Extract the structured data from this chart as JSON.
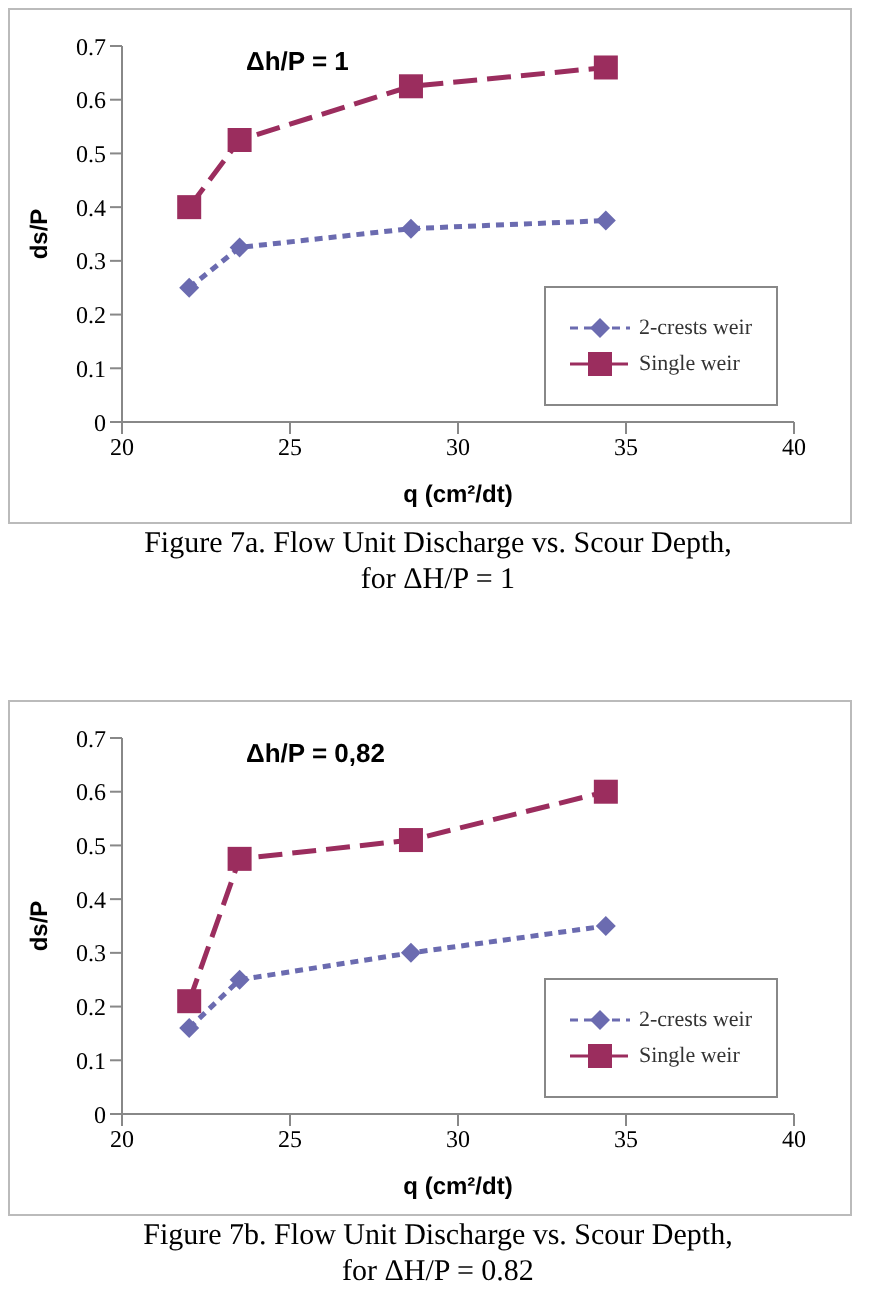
{
  "chart_data": [
    {
      "type": "line",
      "title": "Δh/P = 1",
      "xlabel": "q (cm²/dt)",
      "ylabel": "ds/P",
      "x": [
        22,
        23.5,
        28.6,
        34.4
      ],
      "xlim": [
        20,
        40
      ],
      "xticks": [
        20,
        25,
        30,
        35,
        40
      ],
      "ylim": [
        0,
        0.7
      ],
      "yticks": [
        0,
        0.1,
        0.2,
        0.3,
        0.4,
        0.5,
        0.6,
        0.7
      ],
      "grid": false,
      "legend": "bottom right",
      "series": [
        {
          "name": "2-crests weir",
          "color": "#6b6bb0",
          "marker": "diamond",
          "line_style": "dotted",
          "values": [
            0.25,
            0.325,
            0.36,
            0.375
          ]
        },
        {
          "name": "Single weir",
          "color": "#9b2d5e",
          "marker": "square",
          "line_style": "dashed",
          "values": [
            0.4,
            0.525,
            0.625,
            0.66
          ]
        }
      ],
      "annotations": [
        "Figure 7a. Flow Unit Discharge vs.  Scour Depth,",
        "for ΔH/P = 1"
      ]
    },
    {
      "type": "line",
      "title": "Δh/P = 0,82",
      "xlabel": "q (cm²/dt)",
      "ylabel": "ds/P",
      "x": [
        22,
        23.5,
        28.6,
        34.4
      ],
      "xlim": [
        20,
        40
      ],
      "xticks": [
        20,
        25,
        30,
        35,
        40
      ],
      "ylim": [
        0,
        0.7
      ],
      "yticks": [
        0,
        0.1,
        0.2,
        0.3,
        0.4,
        0.5,
        0.6,
        0.7
      ],
      "grid": false,
      "legend": "bottom right",
      "series": [
        {
          "name": "2-crests weir",
          "color": "#6b6bb0",
          "marker": "diamond",
          "line_style": "dotted",
          "values": [
            0.16,
            0.25,
            0.3,
            0.35
          ]
        },
        {
          "name": "Single weir",
          "color": "#9b2d5e",
          "marker": "square",
          "line_style": "dashed",
          "values": [
            0.21,
            0.475,
            0.51,
            0.6
          ]
        }
      ],
      "annotations": [
        "Figure 7b. Flow Unit Discharge vs.  Scour Depth,",
        "for ΔH/P = 0.82"
      ]
    }
  ]
}
